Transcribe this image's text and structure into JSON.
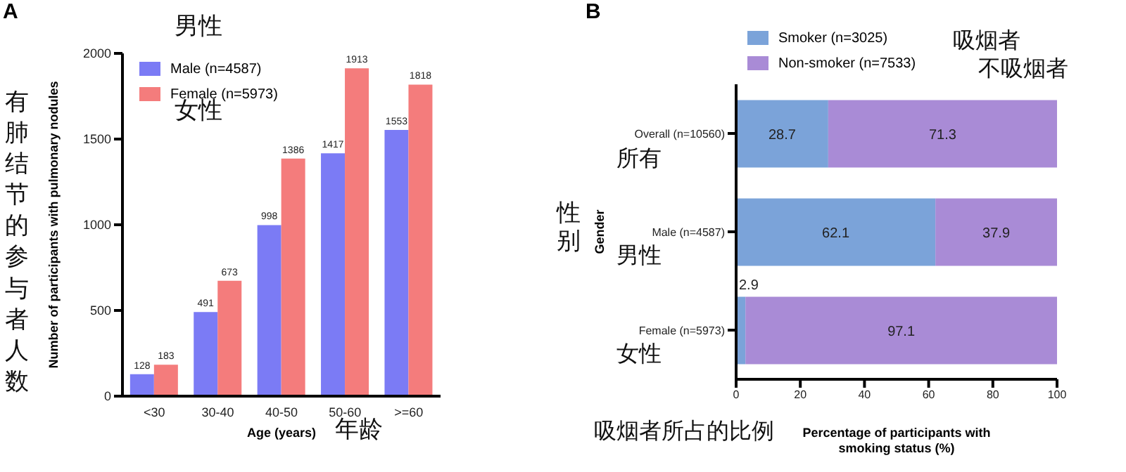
{
  "chart_data": [
    {
      "type": "bar",
      "title": "A",
      "xlabel": "Age (years)",
      "ylabel": "Number of participants with pulmonary nodules",
      "categories": [
        "<30",
        "30-40",
        "40-50",
        "50-60",
        ">=60"
      ],
      "series": [
        {
          "name": "Male (n=4587)",
          "color": "#7b7bf5",
          "values": [
            128,
            491,
            998,
            1417,
            1553
          ]
        },
        {
          "name": "Female (n=5973)",
          "color": "#f47c7c",
          "values": [
            183,
            673,
            1386,
            1913,
            1818
          ]
        }
      ],
      "ylim": [
        0,
        2000
      ],
      "yticks": [
        0,
        500,
        1000,
        1500,
        2000
      ],
      "data_labels": true,
      "legend": "top left",
      "annotations": [
        "男性",
        "女性",
        "有肺结节的参与者人数",
        "年龄"
      ]
    },
    {
      "type": "bar",
      "title": "B",
      "orientation": "horizontal",
      "stacked": true,
      "xlabel": "Percentage of participants with smoking status (%)",
      "ylabel": "Gender",
      "categories": [
        "Overall (n=10560)",
        "Male (n=4587)",
        "Female (n=5973)"
      ],
      "series": [
        {
          "name": "Smoker (n=3025)",
          "color": "#7ba3d9",
          "values": [
            28.7,
            62.1,
            2.9
          ]
        },
        {
          "name": "Non-smoker (n=7533)",
          "color": "#a98bd6",
          "values": [
            71.3,
            37.9,
            97.1
          ]
        }
      ],
      "xlim": [
        0,
        100
      ],
      "xticks": [
        0,
        20,
        40,
        60,
        80,
        100
      ],
      "data_labels": true,
      "legend": "top",
      "annotations": [
        "吸烟者",
        "不吸烟者",
        "所有",
        "男性",
        "女性",
        "性别",
        "吸烟者所占的比例"
      ]
    }
  ]
}
